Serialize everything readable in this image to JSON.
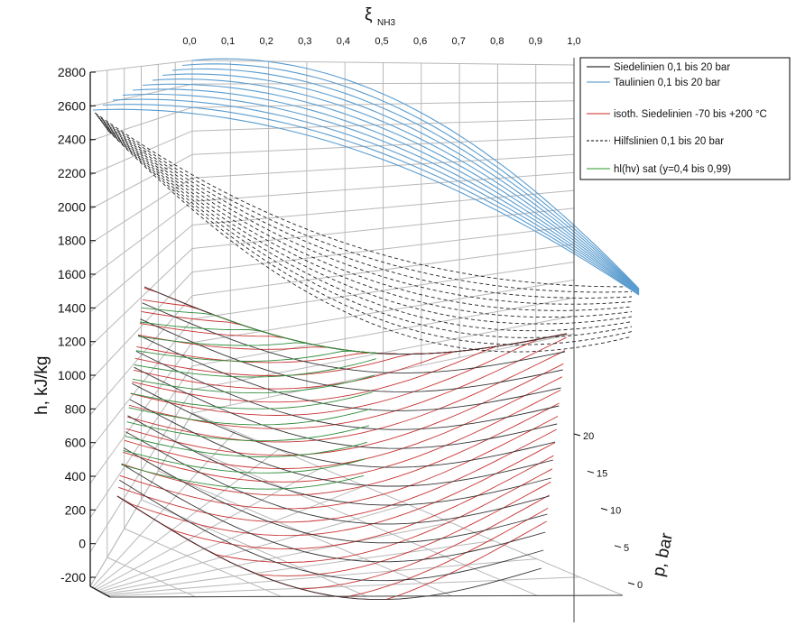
{
  "chart_data": {
    "type": "line",
    "subtype": "3d-surface",
    "title": "",
    "xlabel": "ξ",
    "xlabel_sub": "NH3",
    "ylabel": "h, kJ/kg",
    "zlabel": "p, bar",
    "xlim": [
      0.0,
      1.0
    ],
    "ylim": [
      -200,
      2800
    ],
    "zlim": [
      0,
      20
    ],
    "x_ticks": [
      "0,0",
      "0,1",
      "0,2",
      "0,3",
      "0,4",
      "0,5",
      "0,6",
      "0,7",
      "0,8",
      "0,9",
      "1,0"
    ],
    "y_ticks": [
      "2800",
      "2600",
      "2400",
      "2200",
      "2000",
      "1800",
      "1600",
      "1400",
      "1200",
      "1000",
      "800",
      "600",
      "400",
      "200",
      "0",
      "-200"
    ],
    "z_ticks": [
      "0",
      "5",
      "10",
      "15",
      "20"
    ],
    "grid": true,
    "legend_position": "top-right",
    "legend": [
      {
        "label": "Siedelinien 0,1 bis 20 bar",
        "color": "#000000",
        "style": "solid"
      },
      {
        "label": "Taulinien 0,1 bis 20 bar",
        "color": "#4a90c8",
        "style": "solid"
      },
      {
        "label": "isoth. Siedelinien -70 bis +200 °C",
        "color": "#d02020",
        "style": "solid"
      },
      {
        "label": "Hilfslinien 0,1 bis 20 bar",
        "color": "#000000",
        "style": "dashed"
      },
      {
        "label": "hl(hv) sat (y=0,4 bis 0,99)",
        "color": "#2a9a2a",
        "style": "solid"
      }
    ],
    "series": [
      {
        "name": "Taulinien 0,1 bis 20 bar",
        "pressures_bar": [
          0.1,
          2,
          4,
          6,
          8,
          10,
          12,
          14,
          16,
          18,
          20
        ],
        "h_at_xi0": 2600,
        "h_at_xi1": 1530
      },
      {
        "name": "Hilfslinien 0,1 bis 20 bar",
        "pressures_bar": [
          0.1,
          2,
          4,
          6,
          8,
          10,
          12,
          14,
          16,
          18,
          20
        ]
      },
      {
        "name": "Siedelinien 0,1 bis 20 bar",
        "pressures_bar": [
          0.1,
          2,
          4,
          6,
          8,
          10,
          12,
          14,
          16,
          18,
          20
        ],
        "h_range": [
          -200,
          1000
        ]
      },
      {
        "name": "isoth. Siedelinien -70 bis +200 °C",
        "temperatures_C": [
          -70,
          200
        ]
      },
      {
        "name": "hl(hv) sat (y=0,4 bis 0,99)",
        "y_range": [
          0.4,
          0.99
        ]
      }
    ]
  },
  "colors": {
    "frame": "#000000",
    "grid": "#b8b8b8",
    "dew": "#5a9ccf",
    "bubble": "#333333",
    "isotherm": "#c83232",
    "green": "#2e8b3a"
  }
}
